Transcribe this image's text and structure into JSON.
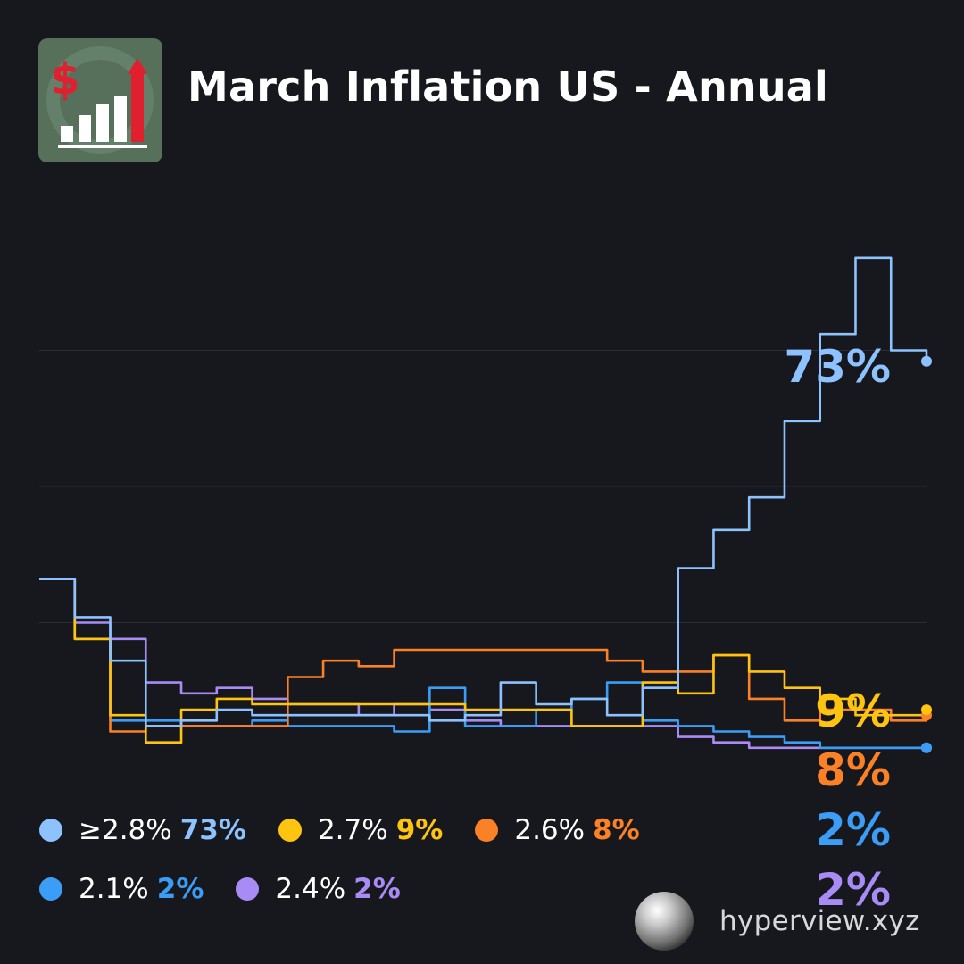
{
  "header": {
    "title": "March Inflation US - Annual",
    "icon": "inflation-chart-dollar-icon"
  },
  "chart_data": {
    "type": "line",
    "title": "March Inflation US - Annual",
    "xlabel": "",
    "ylabel": "",
    "ylim": [
      0,
      100
    ],
    "x": [
      0,
      4,
      8,
      12,
      16,
      20,
      24,
      28,
      32,
      36,
      40,
      44,
      48,
      52,
      56,
      60,
      64,
      68,
      72,
      76,
      80,
      84,
      88,
      92,
      96,
      100
    ],
    "grid": true,
    "series": [
      {
        "name": "≥2.8%",
        "value_label": "73%",
        "color": "#8ec2ff",
        "values": [
          33,
          26,
          18,
          6,
          7,
          9,
          8,
          8,
          8,
          8,
          8,
          7,
          8,
          14,
          10,
          11,
          8,
          13,
          35,
          42,
          48,
          62,
          78,
          92,
          75,
          73
        ]
      },
      {
        "name": "2.7%",
        "value_label": "9%",
        "color": "#ffc40f",
        "values": [
          33,
          22,
          8,
          3,
          9,
          11,
          10,
          10,
          10,
          10,
          10,
          10,
          9,
          9,
          9,
          6,
          6,
          14,
          12,
          19,
          16,
          13,
          11,
          8,
          8,
          9
        ]
      },
      {
        "name": "2.6%",
        "value_label": "8%",
        "color": "#fb8127",
        "values": [
          33,
          22,
          5,
          6,
          6,
          6,
          6,
          15,
          18,
          17,
          20,
          20,
          20,
          20,
          20,
          20,
          18,
          16,
          16,
          19,
          11,
          7,
          9,
          9,
          7,
          8
        ]
      },
      {
        "name": "2.1%",
        "value_label": "2%",
        "color": "#3b9df5",
        "values": [
          33,
          22,
          7,
          7,
          6,
          6,
          7,
          6,
          6,
          6,
          5,
          13,
          6,
          6,
          9,
          11,
          14,
          7,
          6,
          5,
          4,
          3,
          2,
          2,
          2,
          2
        ]
      },
      {
        "name": "2.4%",
        "value_label": "2%",
        "color": "#a98bf5",
        "values": [
          33,
          25,
          22,
          14,
          12,
          13,
          11,
          10,
          10,
          8,
          10,
          9,
          7,
          6,
          6,
          6,
          6,
          6,
          4,
          3,
          2,
          2,
          2,
          2,
          2,
          2
        ]
      }
    ]
  },
  "legend": {
    "rows": [
      [
        {
          "label": "≥2.8%",
          "value": "73%",
          "color": "#8ec2ff"
        },
        {
          "label": "2.7%",
          "value": "9%",
          "color": "#ffc40f"
        },
        {
          "label": "2.6%",
          "value": "8%",
          "color": "#fb8127"
        }
      ],
      [
        {
          "label": "2.1%",
          "value": "2%",
          "color": "#3b9df5"
        },
        {
          "label": "2.4%",
          "value": "2%",
          "color": "#a98bf5"
        }
      ]
    ]
  },
  "brand": {
    "label": "hyperview.xyz",
    "icon": "hyperview-orb-icon"
  }
}
